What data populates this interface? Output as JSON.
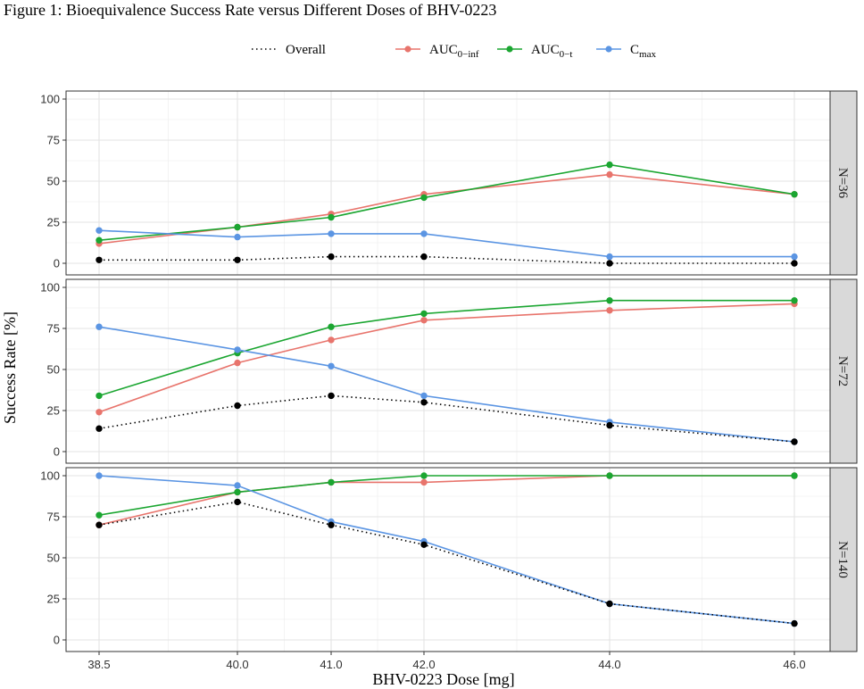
{
  "chart_data": {
    "type": "line",
    "title": "Figure 1: Bioequivalence Success Rate versus Different Doses of BHV-0223",
    "xlabel": "BHV-0223 Dose [mg]",
    "ylabel": "Success Rate [%]",
    "categories": [
      "38.5",
      "40.0",
      "41.0",
      "42.0",
      "44.0",
      "46.0"
    ],
    "y_ticks": [
      "0",
      "25",
      "50",
      "75",
      "100"
    ],
    "ylim": [
      0,
      100
    ],
    "legend": {
      "position": "top",
      "entries": [
        {
          "key": "Overall",
          "label": "Overall",
          "sub": "",
          "style": "dotted",
          "color": "#000000"
        },
        {
          "key": "auc_inf",
          "label": "AUC",
          "sub": "0−inf",
          "style": "solid",
          "color": "#E8746C"
        },
        {
          "key": "auc_t",
          "label": "AUC",
          "sub": "0−t",
          "style": "solid",
          "color": "#1BA631"
        },
        {
          "key": "cmax",
          "label": "C",
          "sub": "max",
          "style": "solid",
          "color": "#5B95E3"
        }
      ]
    },
    "panels": [
      {
        "strip_label": "N=36",
        "series": [
          {
            "key": "Overall",
            "values": [
              2,
              2,
              4,
              4,
              0,
              0
            ]
          },
          {
            "key": "auc_inf",
            "values": [
              12,
              22,
              30,
              42,
              54,
              42
            ]
          },
          {
            "key": "auc_t",
            "values": [
              14,
              22,
              28,
              40,
              60,
              42
            ]
          },
          {
            "key": "cmax",
            "values": [
              20,
              16,
              18,
              18,
              4,
              4
            ]
          }
        ]
      },
      {
        "strip_label": "N=72",
        "series": [
          {
            "key": "Overall",
            "values": [
              14,
              28,
              34,
              30,
              16,
              6
            ]
          },
          {
            "key": "auc_inf",
            "values": [
              24,
              54,
              68,
              80,
              86,
              90
            ]
          },
          {
            "key": "auc_t",
            "values": [
              34,
              60,
              76,
              84,
              92,
              92
            ]
          },
          {
            "key": "cmax",
            "values": [
              76,
              62,
              52,
              34,
              18,
              6
            ]
          }
        ]
      },
      {
        "strip_label": "N=140",
        "series": [
          {
            "key": "Overall",
            "values": [
              70,
              84,
              70,
              58,
              22,
              10
            ]
          },
          {
            "key": "auc_inf",
            "values": [
              70,
              90,
              96,
              96,
              100,
              100
            ]
          },
          {
            "key": "auc_t",
            "values": [
              76,
              90,
              96,
              100,
              100,
              100
            ]
          },
          {
            "key": "cmax",
            "values": [
              100,
              94,
              72,
              60,
              22,
              10
            ]
          }
        ]
      }
    ]
  }
}
